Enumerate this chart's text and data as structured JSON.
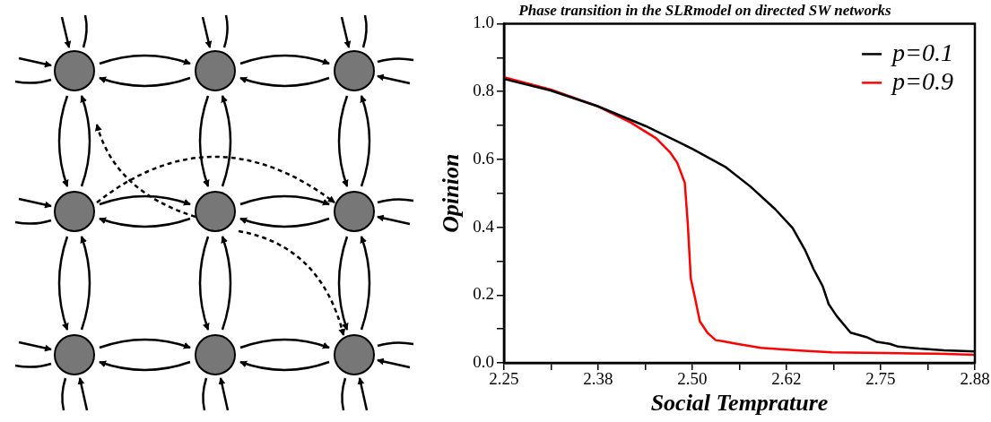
{
  "chart_data": {
    "type": "line",
    "title": "Phase transition in the SLRmodel on directed SW networks",
    "xlabel": "Social Temprature",
    "ylabel": "Opinion",
    "xlim": [
      2.25,
      2.875
    ],
    "xticks": [
      {
        "value": 2.25,
        "label": "2.25"
      },
      {
        "value": 2.3125,
        "label": null
      },
      {
        "value": 2.375,
        "label": "2.38"
      },
      {
        "value": 2.4375,
        "label": null
      },
      {
        "value": 2.5,
        "label": "2.50"
      },
      {
        "value": 2.5625,
        "label": null
      },
      {
        "value": 2.625,
        "label": "2.62"
      },
      {
        "value": 2.6875,
        "label": null
      },
      {
        "value": 2.75,
        "label": "2.75"
      },
      {
        "value": 2.8125,
        "label": null
      },
      {
        "value": 2.875,
        "label": "2.88"
      }
    ],
    "ylim": [
      0,
      1
    ],
    "yticks": [
      {
        "value": 0,
        "label": "0.0"
      },
      {
        "value": 0.1,
        "label": null
      },
      {
        "value": 0.2,
        "label": "0.2"
      },
      {
        "value": 0.3,
        "label": null
      },
      {
        "value": 0.4,
        "label": "0.4"
      },
      {
        "value": 0.5,
        "label": null
      },
      {
        "value": 0.6,
        "label": "0.6"
      },
      {
        "value": 0.7,
        "label": null
      },
      {
        "value": 0.8,
        "label": "0.8"
      },
      {
        "value": 0.9,
        "label": null
      },
      {
        "value": 1,
        "label": "1.0"
      }
    ],
    "legend": "top right",
    "marker": "none",
    "line_style": "solid",
    "series": [
      {
        "name": "p=0.1",
        "color": "#000000",
        "x": [
          2.25,
          2.312,
          2.375,
          2.438,
          2.5,
          2.545,
          2.577,
          2.61,
          2.633,
          2.65,
          2.661,
          2.673,
          2.681,
          2.692,
          2.71,
          2.731,
          2.745,
          2.762,
          2.773,
          2.801,
          2.834,
          2.875
        ],
        "values": [
          0.837,
          0.803,
          0.756,
          0.698,
          0.631,
          0.576,
          0.52,
          0.453,
          0.398,
          0.331,
          0.276,
          0.226,
          0.173,
          0.137,
          0.089,
          0.076,
          0.062,
          0.056,
          0.048,
          0.042,
          0.037,
          0.034
        ]
      },
      {
        "name": "p=0.9",
        "color": "#ff0000",
        "x": [
          2.25,
          2.312,
          2.375,
          2.418,
          2.452,
          2.47,
          2.48,
          2.49,
          2.494,
          2.498,
          2.504,
          2.51,
          2.52,
          2.531,
          2.54,
          2.559,
          2.591,
          2.638,
          2.685,
          2.755,
          2.825,
          2.875
        ],
        "values": [
          0.842,
          0.806,
          0.756,
          0.709,
          0.662,
          0.622,
          0.59,
          0.531,
          0.409,
          0.248,
          0.187,
          0.122,
          0.089,
          0.067,
          0.064,
          0.056,
          0.044,
          0.037,
          0.031,
          0.029,
          0.027,
          0.024
        ]
      }
    ]
  }
}
